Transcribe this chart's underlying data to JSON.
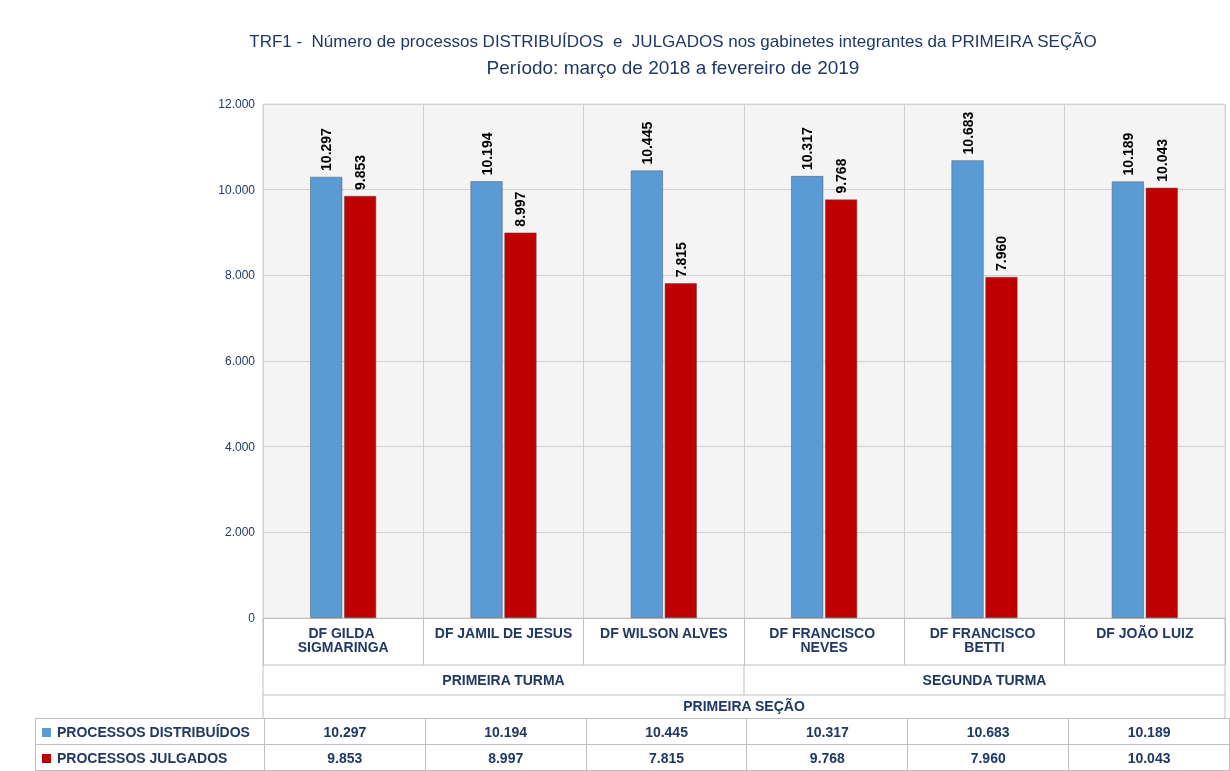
{
  "chart_data": {
    "type": "bar",
    "title": "TRF1 -  Número de processos DISTRIBUÍDOS  e  JULGADOS nos gabinetes integrantes da PRIMEIRA SEÇÃO",
    "subtitle": "Período: março de 2018 a fevereiro de 2019",
    "categories": [
      "DF GILDA SIGMARINGA",
      "DF JAMIL DE JESUS",
      "DF WILSON ALVES",
      "DF FRANCISCO NEVES",
      "DF FRANCISCO BETTI",
      "DF JOÃO LUIZ"
    ],
    "series": [
      {
        "name": "PROCESSOS DISTRIBUÍDOS",
        "color": "#5b9bd5",
        "values": [
          10297,
          10194,
          10445,
          10317,
          10683,
          10189
        ],
        "value_labels": [
          "10.297",
          "10.194",
          "10.445",
          "10.317",
          "10.683",
          "10.189"
        ]
      },
      {
        "name": "PROCESSOS JULGADOS",
        "color": "#c00000",
        "values": [
          9853,
          8997,
          7815,
          9768,
          7960,
          10043
        ],
        "value_labels": [
          "9.853",
          "8.997",
          "7.815",
          "9.768",
          "7.960",
          "10.043"
        ]
      }
    ],
    "ylim": [
      0,
      12000
    ],
    "yticks": [
      {
        "value": 0,
        "label": "0"
      },
      {
        "value": 2000,
        "label": "2.000"
      },
      {
        "value": 4000,
        "label": "4.000"
      },
      {
        "value": 6000,
        "label": "6.000"
      },
      {
        "value": 8000,
        "label": "8.000"
      },
      {
        "value": 10000,
        "label": "10.000"
      },
      {
        "value": 12000,
        "label": "12.000"
      }
    ],
    "annotations": [
      "PRIMEIRA TURMA",
      "SEGUNDA TURMA",
      "PRIMEIRA SEÇÃO"
    ],
    "grid": true,
    "legend": "bottom left"
  }
}
